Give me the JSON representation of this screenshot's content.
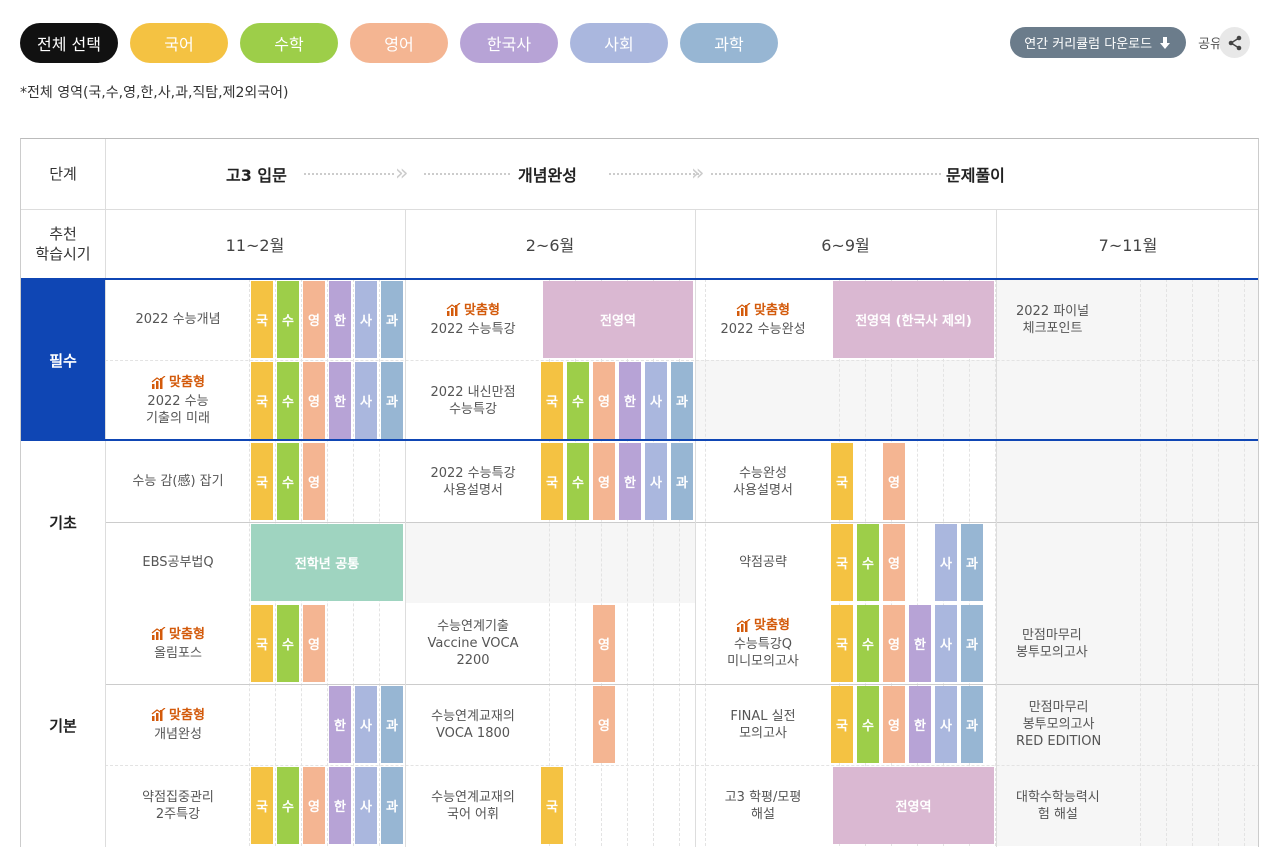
{
  "filters": [
    {
      "label": "전체 선택",
      "color": "#111111"
    },
    {
      "label": "국어",
      "color": "#f4c242"
    },
    {
      "label": "수학",
      "color": "#9dce49"
    },
    {
      "label": "영어",
      "color": "#f4b592"
    },
    {
      "label": "한국사",
      "color": "#b7a3d6"
    },
    {
      "label": "사회",
      "color": "#aab7de"
    },
    {
      "label": "과학",
      "color": "#97b6d3"
    }
  ],
  "toolbar": {
    "download_label": "연간 커리큘럼 다운로드",
    "share_label": "공유"
  },
  "note": "*전체 영역(국,수,영,한,사,과,직탐,제2외국어)",
  "header": {
    "stage_label": "단계",
    "stages": [
      "고3 입문",
      "개념완성",
      "문제풀이"
    ],
    "period_label": "추천\n학습시기",
    "periods": [
      "11~2월",
      "2~6월",
      "6~9월",
      "7~11월"
    ]
  },
  "sections": [
    "필수",
    "기초",
    "기본"
  ],
  "subject_chars": [
    "국",
    "수",
    "영",
    "한",
    "사",
    "과"
  ],
  "badge_label": "맞춤형",
  "colors": {
    "국": "#f4c242",
    "수": "#9dce49",
    "영": "#f4b592",
    "한": "#b7a3d6",
    "사": "#aab7de",
    "과": "#97b6d3",
    "all": "#dab8d2",
    "common": "#9fd4c0"
  },
  "rows": [
    [
      {
        "title": "2022 수능개념",
        "badge": false,
        "subjects": [
          "국",
          "수",
          "영",
          "한",
          "사",
          "과"
        ]
      },
      {
        "title": "2022 수능특강",
        "badge": true,
        "span": "전영역"
      },
      {
        "title": "2022 수능완성",
        "badge": true,
        "span": "전영역 (한국사 제외)"
      },
      {
        "title": "2022 파이널\n체크포인트",
        "badge": false
      }
    ],
    [
      {
        "title": "2022 수능\n기출의 미래",
        "badge": true,
        "subjects": [
          "국",
          "수",
          "영",
          "한",
          "사",
          "과"
        ]
      },
      {
        "title": "2022 내신만점\n수능특강",
        "badge": false,
        "subjects": [
          "국",
          "수",
          "영",
          "한",
          "사",
          "과"
        ]
      },
      null,
      null
    ],
    [
      {
        "title": "수능 감(感) 잡기",
        "badge": false,
        "subjects": [
          "국",
          "수",
          "영"
        ]
      },
      {
        "title": "2022 수능특강\n사용설명서",
        "badge": false,
        "subjects": [
          "국",
          "수",
          "영",
          "한",
          "사",
          "과"
        ]
      },
      {
        "title": "수능완성\n사용설명서",
        "badge": false,
        "subjects": [
          "국",
          "영"
        ]
      },
      null
    ],
    [
      {
        "title": "EBS공부법Q",
        "badge": false,
        "span": "전학년 공통"
      },
      null,
      {
        "title": "약점공략",
        "badge": false,
        "subjects": [
          "국",
          "수",
          "영",
          "사",
          "과"
        ]
      },
      null
    ],
    [
      {
        "title": "올림포스",
        "badge": true,
        "subjects": [
          "국",
          "수",
          "영"
        ]
      },
      {
        "title": "수능연계기출\nVaccine VOCA\n2200",
        "badge": false,
        "subjects": [
          "영"
        ]
      },
      {
        "title": "수능특강Q\n미니모의고사",
        "badge": true,
        "subjects": [
          "국",
          "수",
          "영",
          "한",
          "사",
          "과"
        ]
      },
      {
        "title": "만점마무리\n봉투모의고사",
        "badge": false
      }
    ],
    [
      {
        "title": "개념완성",
        "badge": true,
        "subjects": [
          "한",
          "사",
          "과"
        ]
      },
      {
        "title": "수능연계교재의\nVOCA 1800",
        "badge": false,
        "subjects": [
          "영"
        ]
      },
      {
        "title": "FINAL 실전\n모의고사",
        "badge": false,
        "subjects": [
          "국",
          "수",
          "영",
          "한",
          "사",
          "과"
        ]
      },
      {
        "title": "만점마무리\n봉투모의고사\nRED EDITION",
        "badge": false
      }
    ],
    [
      {
        "title": "약점집중관리\n2주특강",
        "badge": false,
        "subjects": [
          "국",
          "수",
          "영",
          "한",
          "사",
          "과"
        ]
      },
      {
        "title": "수능연계교재의\n국어 어휘",
        "badge": false,
        "subjects": [
          "국"
        ]
      },
      {
        "title": "고3 학평/모평\n해설",
        "badge": false,
        "span": "전영역"
      },
      {
        "title": "대학수학능력시\n험 해설",
        "badge": false
      }
    ]
  ]
}
